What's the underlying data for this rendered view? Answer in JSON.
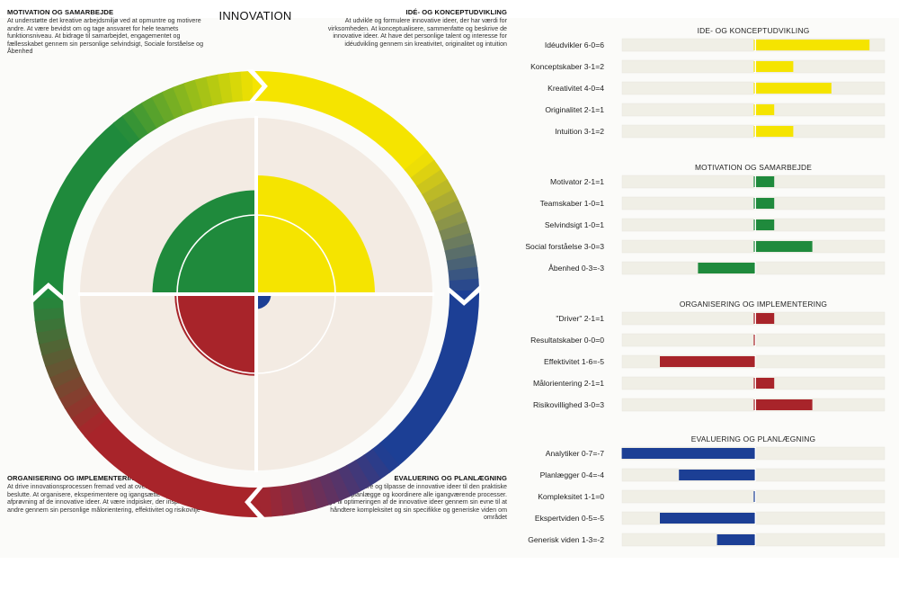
{
  "main_title": "INNOVATION",
  "corners": {
    "tl": {
      "title": "MOTIVATION OG SAMARBEJDE",
      "text": "At understøtte det kreative arbejdsmiljø ved at opmuntre og motivere andre. At være bevidst om og tage ansvaret for hele teamets funktionsniveau. At bidrage til samarbejdet, engagementet og fællesskabet gennem sin personlige selvindsigt, Sociale forståelse og Åbenhed"
    },
    "tr": {
      "title": "IDÉ- OG KONCEPTUDVIKLING",
      "text": "At udvikle og formulere innovative ideer, der har værdi for virksomheden. At konceptualisere, sammenfatte og beskrive de innovative ideer. At have det personlige talent og interesse for idéudvikling gennem sin kreativitet, originalitet og intuition"
    },
    "bl": {
      "title": "ORGANISERING OG IMPLEMENTERING",
      "text": "At drive innovationsprocessen fremad ved at overbevise, målsætte og beslutte. At organisere, eksperimentere og igangsætte den konkrete afprøvning af de innovative ideer. At være indpisker, der inspirerer andre gennem sin personlige målorientering, effektivitet og risikovilje"
    },
    "br": {
      "title": "EVALUERING OG PLANLÆGNING",
      "text": "At analysere, evaluere og tilpasse de innovative ideer til den praktiske virkelighed. At planlægge og koordinere alle igangværende processer. At bidrage til optimeringen af de innovative ideer gennem sin evne til at håndtere kompleksitet og sin specifikke og generiske viden om området"
    }
  },
  "colors": {
    "yellow": "#f5e400",
    "green": "#1f8a3c",
    "red": "#a8242a",
    "blue": "#1c3f95",
    "track": "#f0efe6",
    "quadrant_bg": "#f3ebe3"
  },
  "chart_data": [
    {
      "type": "polar-quadrant",
      "title": "INNOVATION",
      "range": [
        0,
        10
      ],
      "quadrants": [
        {
          "name": "IDÉ- OG KONCEPTUDVIKLING",
          "position": "top-right",
          "value": 8,
          "color": "#f5e400"
        },
        {
          "name": "MOTIVATION OG SAMARBEJDE",
          "position": "top-left",
          "value": 7,
          "color": "#1f8a3c"
        },
        {
          "name": "ORGANISERING OG IMPLEMENTERING",
          "position": "bottom-left",
          "value": 5.5,
          "color": "#a8242a"
        },
        {
          "name": "EVALUERING OG PLANLÆGNING",
          "position": "bottom-right",
          "value": 1,
          "color": "#1c3f95"
        }
      ]
    },
    {
      "type": "bar",
      "orientation": "horizontal-diverging",
      "xlim": [
        -7,
        6
      ],
      "sections": [
        {
          "title": "IDE- OG KONCEPTUDVIKLING",
          "color": "#f5e400",
          "rows": [
            {
              "label": "Idéudvikler 6-0=6",
              "value": 6
            },
            {
              "label": "Konceptskaber 3-1=2",
              "value": 2
            },
            {
              "label": "Kreativitet 4-0=4",
              "value": 4
            },
            {
              "label": "Originalitet 2-1=1",
              "value": 1
            },
            {
              "label": "Intuition 3-1=2",
              "value": 2
            }
          ]
        },
        {
          "title": "MOTIVATION OG SAMARBEJDE",
          "color": "#1f8a3c",
          "rows": [
            {
              "label": "Motivator 2-1=1",
              "value": 1
            },
            {
              "label": "Teamskaber 1-0=1",
              "value": 1
            },
            {
              "label": "Selvindsigt 1-0=1",
              "value": 1
            },
            {
              "label": "Social forståelse 3-0=3",
              "value": 3
            },
            {
              "label": "Åbenhed 0-3=-3",
              "value": -3
            }
          ]
        },
        {
          "title": "ORGANISERING OG IMPLEMENTERING",
          "color": "#a8242a",
          "rows": [
            {
              "label": "\"Driver\" 2-1=1",
              "value": 1
            },
            {
              "label": "Resultatskaber 0-0=0",
              "value": 0
            },
            {
              "label": "Effektivitet 1-6=-5",
              "value": -5
            },
            {
              "label": "Målorientering 2-1=1",
              "value": 1
            },
            {
              "label": "Risikovillighed 3-0=3",
              "value": 3
            }
          ]
        },
        {
          "title": "EVALUERING OG PLANLÆGNING",
          "color": "#1c3f95",
          "rows": [
            {
              "label": "Analytiker 0-7=-7",
              "value": -7
            },
            {
              "label": "Planlægger 0-4=-4",
              "value": -4
            },
            {
              "label": "Kompleksitet 1-1=0",
              "value": 0
            },
            {
              "label": "Ekspertviden 0-5=-5",
              "value": -5
            },
            {
              "label": "Generisk viden 1-3=-2",
              "value": -2
            }
          ]
        }
      ]
    }
  ]
}
